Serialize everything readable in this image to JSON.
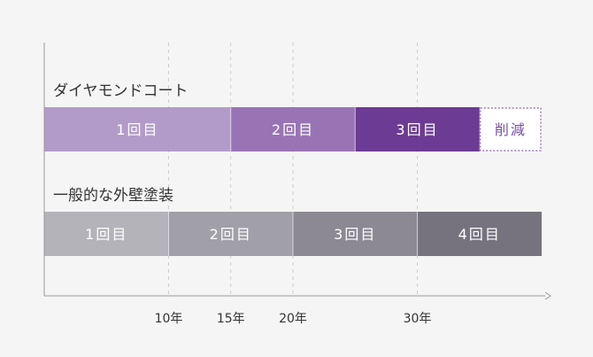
{
  "chart_data": {
    "type": "bar",
    "orientation": "horizontal",
    "stacked": true,
    "x_ticks": [
      {
        "value": 10,
        "label": "10年"
      },
      {
        "value": 15,
        "label": "15年"
      },
      {
        "value": 20,
        "label": "20年"
      },
      {
        "value": 30,
        "label": "30年"
      }
    ],
    "xlim": [
      0,
      40
    ],
    "grid": "vertical dashed lines at ticks",
    "rows": [
      {
        "name": "ダイヤモンドコート",
        "segments": [
          {
            "label": "1回目",
            "start": 0,
            "end": 15,
            "color": "#b39bc9",
            "text_color": "#ffffff"
          },
          {
            "label": "2回目",
            "start": 15,
            "end": 25,
            "color": "#9874b5",
            "text_color": "#ffffff"
          },
          {
            "label": "3回目",
            "start": 25,
            "end": 35,
            "color": "#6c3b93",
            "text_color": "#ffffff"
          },
          {
            "label": "削減",
            "start": 35,
            "end": 40,
            "color": "#ffffff",
            "text_color": "#7a4fa2",
            "style": "dotted-outline"
          }
        ]
      },
      {
        "name": "一般的な外壁塗装",
        "segments": [
          {
            "label": "1回目",
            "start": 0,
            "end": 10,
            "color": "#b4b3b9",
            "text_color": "#ffffff"
          },
          {
            "label": "2回目",
            "start": 10,
            "end": 20,
            "color": "#a19fa7",
            "text_color": "#ffffff"
          },
          {
            "label": "3回目",
            "start": 20,
            "end": 30,
            "color": "#8c8993",
            "text_color": "#ffffff"
          },
          {
            "label": "4回目",
            "start": 30,
            "end": 40,
            "color": "#76737e",
            "text_color": "#ffffff"
          }
        ]
      }
    ],
    "colors": {
      "axis": "#999999",
      "grid": "#cfcfcf",
      "background": "#f5f5f6"
    }
  }
}
